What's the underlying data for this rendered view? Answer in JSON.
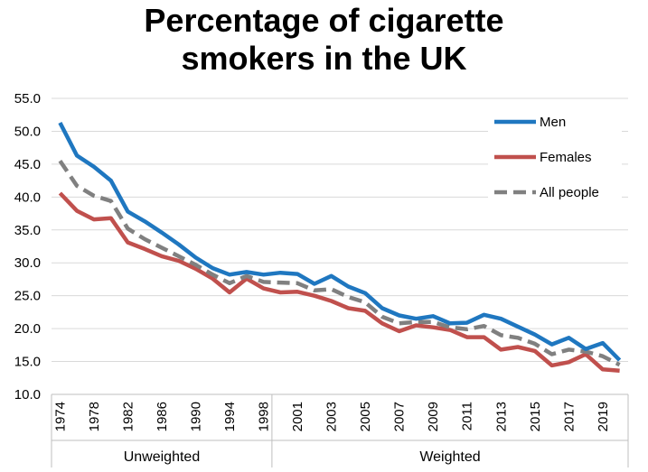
{
  "chart_data": {
    "type": "line",
    "title_lines": [
      "Percentage of cigarette",
      "smokers in the UK"
    ],
    "xlabel": "",
    "ylabel": "",
    "ylim": [
      10,
      55
    ],
    "yticks": [
      10.0,
      15.0,
      20.0,
      25.0,
      30.0,
      35.0,
      40.0,
      45.0,
      50.0,
      55.0
    ],
    "grid": "horizontal",
    "legend_position": "top-right",
    "x_positions": [
      1974,
      1976,
      1978,
      1980,
      1982,
      1984,
      1986,
      1988,
      1990,
      1992,
      1994,
      1996,
      1998,
      2000,
      2001,
      2002,
      2003,
      2004,
      2005,
      2006,
      2007,
      2008,
      2009,
      2010,
      2011,
      2012,
      2013,
      2014,
      2015,
      2016,
      2017,
      2018,
      2019,
      2020
    ],
    "x_tick_labels": [
      "1974",
      "1978",
      "1982",
      "1986",
      "1990",
      "1994",
      "1998",
      "2001",
      "2003",
      "2005",
      "2007",
      "2009",
      "2011",
      "2013",
      "2015",
      "2017",
      "2019"
    ],
    "groups": [
      {
        "label": "Unweighted",
        "from": 1974,
        "to": 1998
      },
      {
        "label": "Weighted",
        "from": 1998,
        "to": 2020
      }
    ],
    "series": [
      {
        "name": "Men",
        "color": "#1f77c0",
        "dash": "solid",
        "values": [
          51.3,
          46.3,
          44.6,
          42.5,
          37.8,
          36.3,
          34.6,
          32.8,
          30.8,
          29.2,
          28.2,
          28.6,
          28.2,
          28.5,
          28.3,
          26.8,
          28.0,
          26.4,
          25.4,
          23.1,
          22.0,
          21.5,
          21.9,
          20.8,
          20.9,
          22.1,
          21.5,
          20.3,
          19.1,
          17.6,
          18.6,
          16.9,
          17.8,
          15.2
        ]
      },
      {
        "name": "Females",
        "color": "#c0504d",
        "dash": "solid",
        "values": [
          40.6,
          37.9,
          36.6,
          36.8,
          33.1,
          32.1,
          31.0,
          30.3,
          29.1,
          27.6,
          25.5,
          27.6,
          26.1,
          25.5,
          25.6,
          25.0,
          24.2,
          23.1,
          22.7,
          20.8,
          19.6,
          20.5,
          20.2,
          19.8,
          18.7,
          18.7,
          16.8,
          17.2,
          16.6,
          14.4,
          14.9,
          16.1,
          13.8,
          13.6
        ]
      },
      {
        "name": "All people",
        "color": "#808080",
        "dash": "dashed",
        "values": [
          45.5,
          41.7,
          40.2,
          39.4,
          35.2,
          33.6,
          32.3,
          31.0,
          29.7,
          28.2,
          26.9,
          28.0,
          27.1,
          27.0,
          26.9,
          25.8,
          26.0,
          24.8,
          24.0,
          21.8,
          20.8,
          21.0,
          21.0,
          20.2,
          19.9,
          20.4,
          19.0,
          18.6,
          17.7,
          16.1,
          16.8,
          16.5,
          15.8,
          14.5
        ]
      }
    ]
  }
}
